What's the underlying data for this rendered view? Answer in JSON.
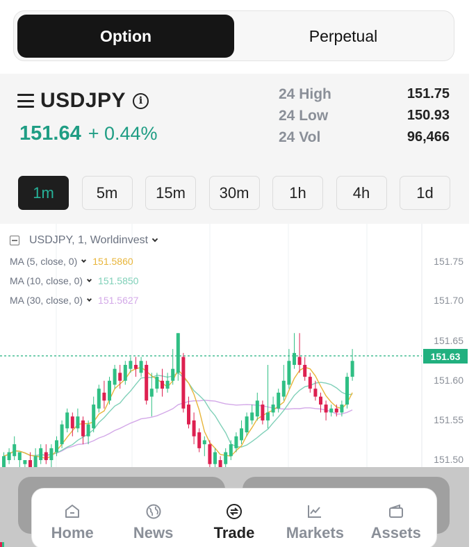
{
  "mode_toggle": {
    "active": "Option",
    "inactive": "Perpetual"
  },
  "ticker": {
    "symbol": "USDJPY",
    "info_icon": "i",
    "price": "151.64",
    "change": "+ 0.44%",
    "stats": [
      {
        "label": "24 High",
        "value": "151.75"
      },
      {
        "label": "24 Low",
        "value": "150.93"
      },
      {
        "label": "24 Vol",
        "value": "96,466"
      }
    ]
  },
  "intervals": [
    "1m",
    "5m",
    "15m",
    "30m",
    "1h",
    "4h",
    "1d"
  ],
  "selected_interval": "1m",
  "chart": {
    "legend_title": "USDJPY, 1, Worldinvest",
    "ma": [
      {
        "label": "MA (5, close, 0)",
        "value": "151.5860",
        "color": "#e8b53a"
      },
      {
        "label": "MA (10, close, 0)",
        "value": "151.5850",
        "color": "#7fd0b8"
      },
      {
        "label": "MA (30, close, 0)",
        "value": "151.5627",
        "color": "#d3a8e8"
      }
    ],
    "price_axis": [
      "151.75",
      "151.70",
      "151.65",
      "151.60",
      "151.55",
      "151.50"
    ],
    "current_price_tag": "151.63",
    "up_color": "#2fbf84",
    "down_color": "#dd2050"
  },
  "nav": [
    {
      "label": "Home",
      "icon": "home-icon"
    },
    {
      "label": "News",
      "icon": "globe-icon"
    },
    {
      "label": "Trade",
      "icon": "exchange-icon",
      "active": true
    },
    {
      "label": "Markets",
      "icon": "chart-line-icon"
    },
    {
      "label": "Assets",
      "icon": "wallet-icon"
    }
  ]
}
